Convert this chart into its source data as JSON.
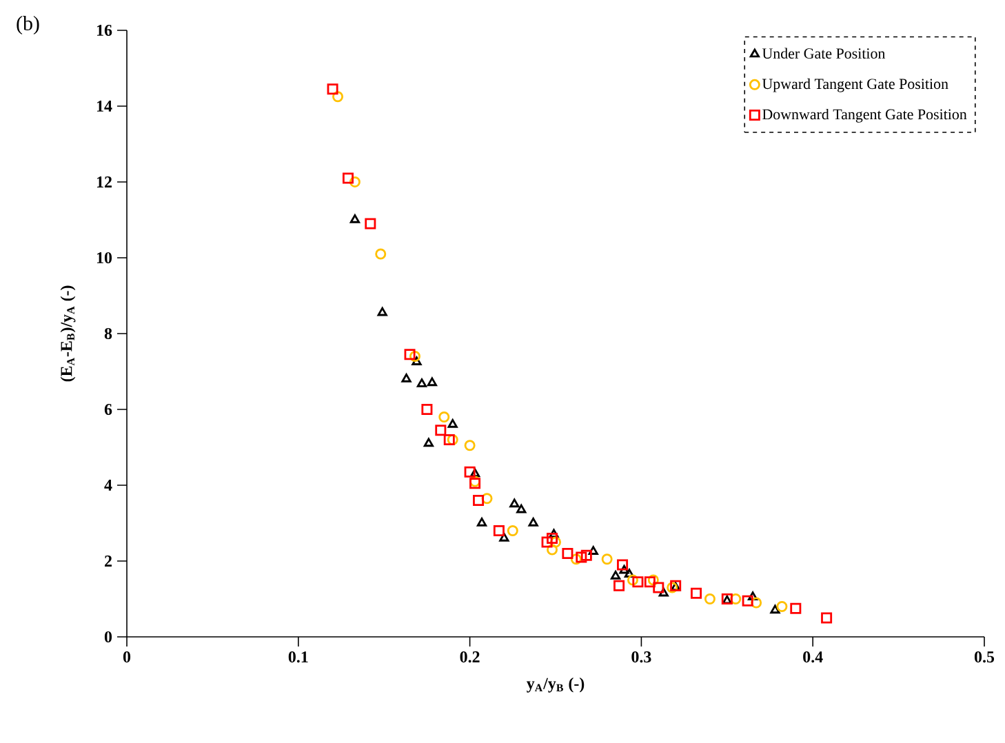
{
  "chart_data": {
    "type": "scatter",
    "xlabel": "y$_{A}$/y$_{B}$ (-)",
    "ylabel": "(E$_{A}$-E$_{B}$)/y$_{A}$ (-)",
    "annotations": [
      "(b)"
    ],
    "xlim": [
      0,
      0.5
    ],
    "ylim": [
      0,
      16
    ],
    "xticks": [
      0,
      0.1,
      0.2,
      0.3,
      0.4,
      0.5
    ],
    "yticks": [
      0,
      2,
      4,
      6,
      8,
      10,
      12,
      14,
      16
    ],
    "grid": false,
    "legend": "top right",
    "series": [
      {
        "name": "Under Gate Position",
        "color": "#000000",
        "marker": "triangle",
        "x": [
          0.133,
          0.149,
          0.163,
          0.169,
          0.172,
          0.178,
          0.176,
          0.19,
          0.203,
          0.207,
          0.22,
          0.226,
          0.23,
          0.237,
          0.249,
          0.264,
          0.272,
          0.285,
          0.29,
          0.293,
          0.313,
          0.32,
          0.35,
          0.365,
          0.378
        ],
        "values": [
          11.0,
          8.55,
          6.8,
          7.25,
          6.67,
          6.7,
          5.1,
          5.6,
          4.3,
          3.0,
          2.6,
          3.5,
          3.35,
          3.0,
          2.7,
          null,
          2.25,
          1.6,
          1.75,
          1.65,
          1.15,
          1.3,
          0.95,
          1.05,
          0.7
        ]
      },
      {
        "name": "Upward Tangent Gate Position",
        "color": "#ffc000",
        "marker": "circle",
        "x": [
          0.123,
          0.133,
          0.148,
          0.168,
          0.185,
          0.19,
          0.2,
          0.203,
          0.21,
          0.225,
          0.25,
          0.248,
          0.262,
          0.28,
          0.295,
          0.3,
          0.307,
          0.318,
          0.34,
          0.355,
          0.367,
          0.382
        ],
        "values": [
          14.25,
          12.0,
          10.1,
          7.4,
          5.8,
          5.2,
          5.05,
          4.1,
          3.65,
          2.8,
          2.5,
          2.3,
          2.05,
          2.05,
          1.5,
          null,
          1.5,
          1.3,
          1.0,
          1.0,
          0.9,
          0.8
        ]
      },
      {
        "name": "Downward Tangent Gate Position",
        "color": "#ff0000",
        "marker": "square",
        "x": [
          0.12,
          0.129,
          0.142,
          0.165,
          0.175,
          0.183,
          0.188,
          0.2,
          0.203,
          0.205,
          0.217,
          0.245,
          0.248,
          0.257,
          0.265,
          0.268,
          0.289,
          0.287,
          0.298,
          0.305,
          0.31,
          0.32,
          0.332,
          0.35,
          0.362,
          0.39,
          0.408
        ],
        "values": [
          14.45,
          12.1,
          10.9,
          7.45,
          6.0,
          5.45,
          5.2,
          4.35,
          4.05,
          3.6,
          2.8,
          2.5,
          2.6,
          2.2,
          2.1,
          2.15,
          1.9,
          1.35,
          1.45,
          1.45,
          1.3,
          1.35,
          1.15,
          1.0,
          0.95,
          0.75,
          0.5
        ]
      }
    ]
  }
}
